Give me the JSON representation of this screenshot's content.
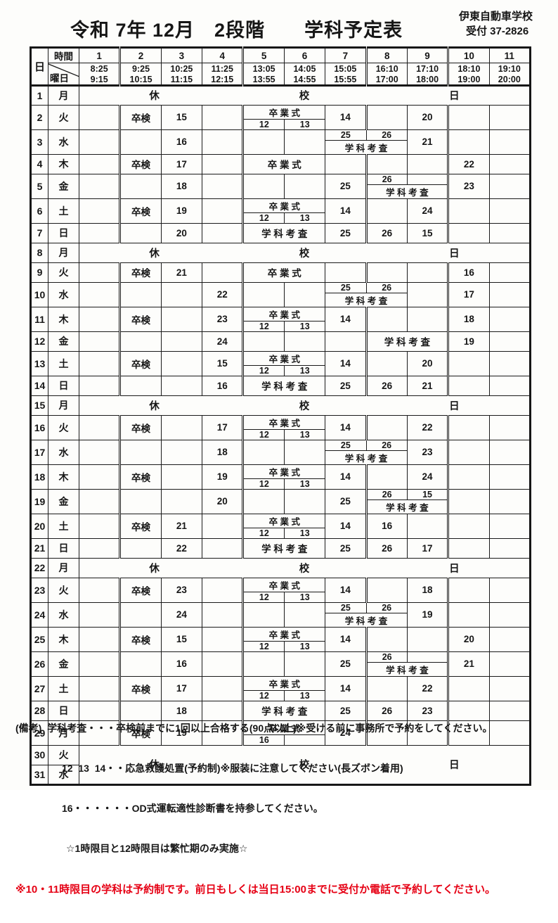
{
  "title": "令和 7年 12月　2段階　　学科予定表",
  "school": "伊東自動車学校",
  "reception": "受付 37-2826",
  "colors": {
    "red": "#e60014",
    "ink": "#1a1a1a"
  },
  "header": {
    "day": "日",
    "time": "時間",
    "weekday": "曜日",
    "periods": [
      {
        "no": "1",
        "start": "8:25",
        "end": "9:15"
      },
      {
        "no": "2",
        "start": "9:25",
        "end": "10:15"
      },
      {
        "no": "3",
        "start": "10:25",
        "end": "11:15"
      },
      {
        "no": "4",
        "start": "11:25",
        "end": "12:15"
      },
      {
        "no": "5",
        "start": "13:05",
        "end": "13:55"
      },
      {
        "no": "6",
        "start": "14:05",
        "end": "14:55"
      },
      {
        "no": "7",
        "start": "15:05",
        "end": "15:55"
      },
      {
        "no": "8",
        "start": "16:10",
        "end": "17:00"
      },
      {
        "no": "9",
        "start": "17:10",
        "end": "18:00"
      },
      {
        "no": "10",
        "start": "18:10",
        "end": "19:00"
      },
      {
        "no": "11",
        "start": "19:10",
        "end": "20:00"
      }
    ]
  },
  "holiday_label": [
    "休",
    "校",
    "日"
  ],
  "labels": {
    "sotsuken": "卒検",
    "graduation": "卒 業 式",
    "exam": "学 科 考 査"
  },
  "rows": [
    {
      "day": "1",
      "weekday": "月",
      "type": "holiday"
    },
    {
      "day": "2",
      "weekday": "火",
      "cells": [
        {
          "col": 2,
          "text": "卒検"
        },
        {
          "col": 3,
          "text": "15"
        },
        {
          "col": 5,
          "span": 2,
          "type": "tb",
          "top": "卒 業 式",
          "bl": "12",
          "br": "13"
        },
        {
          "col": 7,
          "text": "14"
        },
        {
          "col": 9,
          "text": "20"
        }
      ]
    },
    {
      "day": "3",
      "weekday": "水",
      "cells": [
        {
          "col": 3,
          "text": "16"
        },
        {
          "col": 7,
          "span": 2,
          "type": "bt",
          "tl": "25",
          "tr": "26",
          "bottom": "学 科 考 査"
        },
        {
          "col": 9,
          "text": "21"
        }
      ]
    },
    {
      "day": "4",
      "weekday": "木",
      "cells": [
        {
          "col": 2,
          "text": "卒検"
        },
        {
          "col": 3,
          "text": "17"
        },
        {
          "col": 5,
          "span": 2,
          "type": "full",
          "text": "卒 業 式"
        },
        {
          "col": 10,
          "text": "22"
        }
      ]
    },
    {
      "day": "5",
      "weekday": "金",
      "cells": [
        {
          "col": 3,
          "text": "18"
        },
        {
          "col": 7,
          "text": "25"
        },
        {
          "col": 8,
          "span": 2,
          "type": "bt",
          "tl": "26",
          "tr": "",
          "bottom": "学 科 考 査"
        },
        {
          "col": 10,
          "text": "23"
        }
      ]
    },
    {
      "day": "6",
      "weekday": "土",
      "cells": [
        {
          "col": 2,
          "text": "卒検"
        },
        {
          "col": 3,
          "text": "19"
        },
        {
          "col": 5,
          "span": 2,
          "type": "tb",
          "top": "卒 業 式",
          "bl": "12",
          "br": "13"
        },
        {
          "col": 7,
          "text": "14"
        },
        {
          "col": 9,
          "text": "24"
        }
      ]
    },
    {
      "day": "7",
      "weekday": "日",
      "cells": [
        {
          "col": 3,
          "text": "20"
        },
        {
          "col": 5,
          "span": 2,
          "type": "full",
          "text": "学 科 考 査"
        },
        {
          "col": 7,
          "text": "25"
        },
        {
          "col": 8,
          "text": "26"
        },
        {
          "col": 9,
          "text": "15"
        }
      ]
    },
    {
      "day": "8",
      "weekday": "月",
      "type": "holiday"
    },
    {
      "day": "9",
      "weekday": "火",
      "cells": [
        {
          "col": 2,
          "text": "卒検"
        },
        {
          "col": 3,
          "text": "21"
        },
        {
          "col": 5,
          "span": 2,
          "type": "full",
          "text": "卒 業 式"
        },
        {
          "col": 10,
          "text": "16"
        }
      ]
    },
    {
      "day": "10",
      "weekday": "水",
      "cells": [
        {
          "col": 4,
          "text": "22"
        },
        {
          "col": 7,
          "span": 2,
          "type": "bt",
          "tl": "25",
          "tr": "26",
          "bottom": "学 科 考 査"
        },
        {
          "col": 10,
          "text": "17"
        }
      ]
    },
    {
      "day": "11",
      "weekday": "木",
      "cells": [
        {
          "col": 2,
          "text": "卒検"
        },
        {
          "col": 4,
          "text": "23"
        },
        {
          "col": 5,
          "span": 2,
          "type": "tb",
          "top": "卒 業 式",
          "bl": "12",
          "br": "13"
        },
        {
          "col": 7,
          "text": "14"
        },
        {
          "col": 10,
          "text": "18"
        }
      ]
    },
    {
      "day": "12",
      "weekday": "金",
      "cells": [
        {
          "col": 4,
          "text": "24"
        },
        {
          "col": 8,
          "span": 2,
          "type": "full",
          "text": "学 科 考 査"
        },
        {
          "col": 10,
          "text": "19"
        }
      ]
    },
    {
      "day": "13",
      "weekday": "土",
      "cells": [
        {
          "col": 2,
          "text": "卒検"
        },
        {
          "col": 4,
          "text": "15"
        },
        {
          "col": 5,
          "span": 2,
          "type": "tb",
          "top": "卒 業 式",
          "bl": "12",
          "br": "13"
        },
        {
          "col": 7,
          "text": "14"
        },
        {
          "col": 9,
          "text": "20"
        }
      ]
    },
    {
      "day": "14",
      "weekday": "日",
      "cells": [
        {
          "col": 4,
          "text": "16"
        },
        {
          "col": 5,
          "span": 2,
          "type": "full",
          "text": "学 科 考 査"
        },
        {
          "col": 7,
          "text": "25"
        },
        {
          "col": 8,
          "text": "26"
        },
        {
          "col": 9,
          "text": "21"
        }
      ]
    },
    {
      "day": "15",
      "weekday": "月",
      "type": "holiday"
    },
    {
      "day": "16",
      "weekday": "火",
      "cells": [
        {
          "col": 2,
          "text": "卒検"
        },
        {
          "col": 4,
          "text": "17"
        },
        {
          "col": 5,
          "span": 2,
          "type": "tb",
          "top": "卒 業 式",
          "bl": "12",
          "br": "13"
        },
        {
          "col": 7,
          "text": "14"
        },
        {
          "col": 9,
          "text": "22"
        }
      ]
    },
    {
      "day": "17",
      "weekday": "水",
      "cells": [
        {
          "col": 4,
          "text": "18"
        },
        {
          "col": 7,
          "span": 2,
          "type": "bt",
          "tl": "25",
          "tr": "26",
          "bottom": "学 科 考 査"
        },
        {
          "col": 9,
          "text": "23"
        }
      ]
    },
    {
      "day": "18",
      "weekday": "木",
      "cells": [
        {
          "col": 2,
          "text": "卒検"
        },
        {
          "col": 4,
          "text": "19"
        },
        {
          "col": 5,
          "span": 2,
          "type": "tb",
          "top": "卒 業 式",
          "bl": "12",
          "br": "13"
        },
        {
          "col": 7,
          "text": "14"
        },
        {
          "col": 9,
          "text": "24"
        }
      ]
    },
    {
      "day": "19",
      "weekday": "金",
      "cells": [
        {
          "col": 4,
          "text": "20"
        },
        {
          "col": 7,
          "text": "25"
        },
        {
          "col": 8,
          "span": 2,
          "type": "bt",
          "tl": "26",
          "tr": "15",
          "bottom": "学 科 考 査"
        }
      ]
    },
    {
      "day": "20",
      "weekday": "土",
      "cells": [
        {
          "col": 2,
          "text": "卒検"
        },
        {
          "col": 3,
          "text": "21"
        },
        {
          "col": 5,
          "span": 2,
          "type": "tb",
          "top": "卒 業 式",
          "bl": "12",
          "br": "13"
        },
        {
          "col": 7,
          "text": "14"
        },
        {
          "col": 8,
          "text": "16"
        }
      ]
    },
    {
      "day": "21",
      "weekday": "日",
      "cells": [
        {
          "col": 3,
          "text": "22"
        },
        {
          "col": 5,
          "span": 2,
          "type": "full",
          "text": "学 科 考 査"
        },
        {
          "col": 7,
          "text": "25"
        },
        {
          "col": 8,
          "text": "26"
        },
        {
          "col": 9,
          "text": "17"
        }
      ]
    },
    {
      "day": "22",
      "weekday": "月",
      "type": "holiday"
    },
    {
      "day": "23",
      "weekday": "火",
      "cells": [
        {
          "col": 2,
          "text": "卒検"
        },
        {
          "col": 3,
          "text": "23"
        },
        {
          "col": 5,
          "span": 2,
          "type": "tb",
          "top": "卒 業 式",
          "bl": "12",
          "br": "13"
        },
        {
          "col": 7,
          "text": "14"
        },
        {
          "col": 9,
          "text": "18"
        }
      ]
    },
    {
      "day": "24",
      "weekday": "水",
      "cells": [
        {
          "col": 3,
          "text": "24"
        },
        {
          "col": 7,
          "span": 2,
          "type": "bt",
          "tl": "25",
          "tr": "26",
          "bottom": "学 科 考 査"
        },
        {
          "col": 9,
          "text": "19"
        }
      ]
    },
    {
      "day": "25",
      "weekday": "木",
      "cells": [
        {
          "col": 2,
          "text": "卒検"
        },
        {
          "col": 3,
          "text": "15"
        },
        {
          "col": 5,
          "span": 2,
          "type": "tb",
          "top": "卒 業 式",
          "bl": "12",
          "br": "13"
        },
        {
          "col": 7,
          "text": "14"
        },
        {
          "col": 10,
          "text": "20"
        }
      ]
    },
    {
      "day": "26",
      "weekday": "金",
      "cells": [
        {
          "col": 3,
          "text": "16"
        },
        {
          "col": 7,
          "text": "25"
        },
        {
          "col": 8,
          "span": 2,
          "type": "bt",
          "tl": "26",
          "tr": "",
          "bottom": "学 科 考 査"
        },
        {
          "col": 10,
          "text": "21"
        }
      ]
    },
    {
      "day": "27",
      "weekday": "土",
      "cells": [
        {
          "col": 2,
          "text": "卒検"
        },
        {
          "col": 3,
          "text": "17"
        },
        {
          "col": 5,
          "span": 2,
          "type": "tb",
          "top": "卒 業 式",
          "bl": "12",
          "br": "13"
        },
        {
          "col": 7,
          "text": "14"
        },
        {
          "col": 9,
          "text": "22"
        }
      ]
    },
    {
      "day": "28",
      "weekday": "日",
      "cells": [
        {
          "col": 3,
          "text": "18"
        },
        {
          "col": 5,
          "span": 2,
          "type": "full",
          "text": "学 科 考 査"
        },
        {
          "col": 7,
          "text": "25"
        },
        {
          "col": 8,
          "text": "26"
        },
        {
          "col": 9,
          "text": "23"
        }
      ]
    },
    {
      "day": "29",
      "weekday": "月",
      "cells": [
        {
          "col": 2,
          "text": "卒検"
        },
        {
          "col": 3,
          "text": "19"
        },
        {
          "col": 5,
          "span": 2,
          "type": "tb",
          "top": "卒 業 式",
          "bl": "16",
          "br": ""
        },
        {
          "col": 7,
          "text": "24"
        }
      ]
    },
    {
      "day": "30",
      "weekday": "火",
      "type": "holiday2"
    },
    {
      "day": "31",
      "weekday": "水",
      "type": "holiday2b"
    }
  ],
  "notes_prefix": "(備考)",
  "notes": [
    "学科考査・・・卒検前までに1回以上合格する(90点以上)※受ける前に事務所で予約をしてください。",
    "12  13  14・・応急救護処置(予約制)※服装に注意してください(長ズボン着用)",
    "16・・・・・・OD式運転適性診断書を持参してください。",
    "☆1時限目と12時限目は繁忙期のみ実施☆"
  ],
  "note_red": "※10・11時限目の学科は予約制です。前日もしくは当日15:00までに受付か電話で予約してください。"
}
